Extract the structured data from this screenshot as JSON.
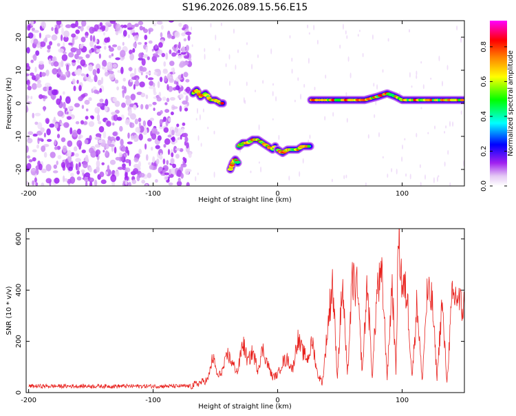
{
  "title": "S196.2026.089.15.56.E15",
  "chart_data": [
    {
      "type": "heatmap",
      "title": "S196.2026.089.15.56.E15",
      "xlabel": "Height of straight line (km)",
      "ylabel": "Frequency (Hz)",
      "xlim": [
        -202,
        150
      ],
      "ylim": [
        -25,
        25
      ],
      "xticks": [
        -200,
        -100,
        0,
        100
      ],
      "yticks": [
        -20,
        -10,
        0,
        10,
        20
      ],
      "colorbar": {
        "label": "Normalized spectral amplitude",
        "range": [
          0.0,
          0.95
        ],
        "ticks": [
          0.0,
          0.2,
          0.4,
          0.6,
          0.8
        ],
        "colors": [
          "#ffffff",
          "#a020f0",
          "#0000ff",
          "#00ffff",
          "#00ff00",
          "#ffff00",
          "#ff8000",
          "#ff0000",
          "#ff00ff"
        ]
      },
      "noise_region": {
        "x": [
          -202,
          -70
        ],
        "y": [
          -25,
          25
        ],
        "level": 0.15
      },
      "ridge_segments": [
        {
          "x": [
            -68,
            -65,
            -62,
            -58,
            -54,
            -50,
            -46,
            -44
          ],
          "y": [
            3,
            4,
            2,
            3,
            1,
            1,
            0,
            0
          ]
        },
        {
          "x": [
            -38,
            -36,
            -34,
            -32
          ],
          "y": [
            -20,
            -18,
            -17,
            -18
          ]
        },
        {
          "x": [
            -31,
            -28,
            -24,
            -20,
            -16,
            -12,
            -8,
            -4,
            -2
          ],
          "y": [
            -13,
            -12,
            -12,
            -11,
            -11,
            -12,
            -13,
            -14,
            -13
          ]
        },
        {
          "x": [
            0,
            4,
            8,
            12,
            16,
            20,
            26
          ],
          "y": [
            -14,
            -15,
            -14,
            -14,
            -14,
            -13,
            -13
          ]
        },
        {
          "x": [
            27,
            40,
            50,
            60,
            70,
            80,
            88,
            95,
            100,
            110,
            120,
            130,
            140,
            150
          ],
          "y": [
            1,
            1,
            1,
            1,
            1,
            2,
            3,
            2,
            1,
            1,
            1,
            1,
            1,
            1
          ]
        }
      ]
    },
    {
      "type": "line",
      "xlabel": "Height of straight line (km)",
      "ylabel": "SNR (10 * v/v)",
      "xlim": [
        -202,
        150
      ],
      "ylim": [
        0,
        640
      ],
      "xticks": [
        -200,
        -100,
        0,
        100
      ],
      "yticks": [
        0,
        200,
        400,
        600
      ],
      "color": "#e8201c",
      "series": [
        {
          "x": [
            -200,
            -70,
            -56,
            -52,
            -48,
            -44,
            -40,
            -36,
            -32,
            -28,
            -24,
            -20,
            -16,
            -12,
            -8,
            -4,
            0,
            4,
            8,
            12,
            16,
            20,
            24,
            28,
            32,
            36,
            40,
            44,
            48,
            52,
            56,
            60,
            64,
            68,
            72,
            76,
            80,
            84,
            88,
            92,
            95,
            97,
            100,
            104,
            108,
            112,
            116,
            120,
            124,
            128,
            132,
            136,
            140,
            144,
            148,
            150
          ],
          "y": [
            25,
            25,
            50,
            140,
            60,
            90,
            150,
            110,
            80,
            200,
            120,
            160,
            90,
            170,
            110,
            60,
            70,
            120,
            130,
            90,
            210,
            160,
            130,
            200,
            70,
            40,
            240,
            440,
            60,
            430,
            60,
            440,
            400,
            80,
            430,
            60,
            410,
            440,
            60,
            430,
            80,
            620,
            420,
            380,
            60,
            360,
            40,
            380,
            360,
            60,
            350,
            40,
            360,
            380,
            330,
            340
          ]
        }
      ]
    }
  ]
}
